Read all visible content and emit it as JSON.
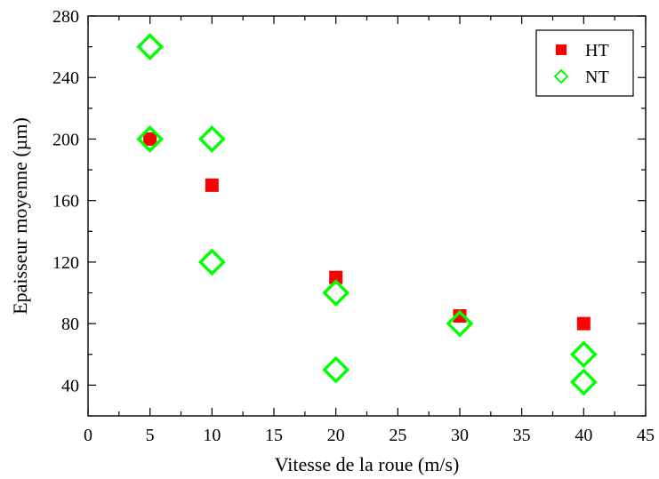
{
  "chart_data": {
    "type": "scatter",
    "title": "",
    "xlabel": "Vitesse de la roue (m/s)",
    "ylabel": "Epaisseur moyenne (µm)",
    "xlim": [
      0,
      45
    ],
    "ylim": [
      20,
      280
    ],
    "x_ticks": [
      0,
      5,
      10,
      15,
      20,
      25,
      30,
      35,
      40,
      45
    ],
    "y_ticks": [
      40,
      80,
      120,
      160,
      200,
      240,
      280
    ],
    "grid": false,
    "legend_position": "top-right",
    "series": [
      {
        "name": "HT",
        "marker": "filled-square",
        "color": "#ff0000",
        "points": [
          {
            "x": 5,
            "y": 200
          },
          {
            "x": 10,
            "y": 170
          },
          {
            "x": 20,
            "y": 110
          },
          {
            "x": 30,
            "y": 85
          },
          {
            "x": 40,
            "y": 80
          }
        ]
      },
      {
        "name": "NT",
        "marker": "open-diamond",
        "color": "#00ff00",
        "points": [
          {
            "x": 5,
            "y": 260
          },
          {
            "x": 5,
            "y": 200
          },
          {
            "x": 10,
            "y": 200
          },
          {
            "x": 10,
            "y": 120
          },
          {
            "x": 20,
            "y": 100
          },
          {
            "x": 20,
            "y": 50
          },
          {
            "x": 30,
            "y": 80
          },
          {
            "x": 40,
            "y": 60
          },
          {
            "x": 40,
            "y": 42
          }
        ]
      }
    ]
  }
}
